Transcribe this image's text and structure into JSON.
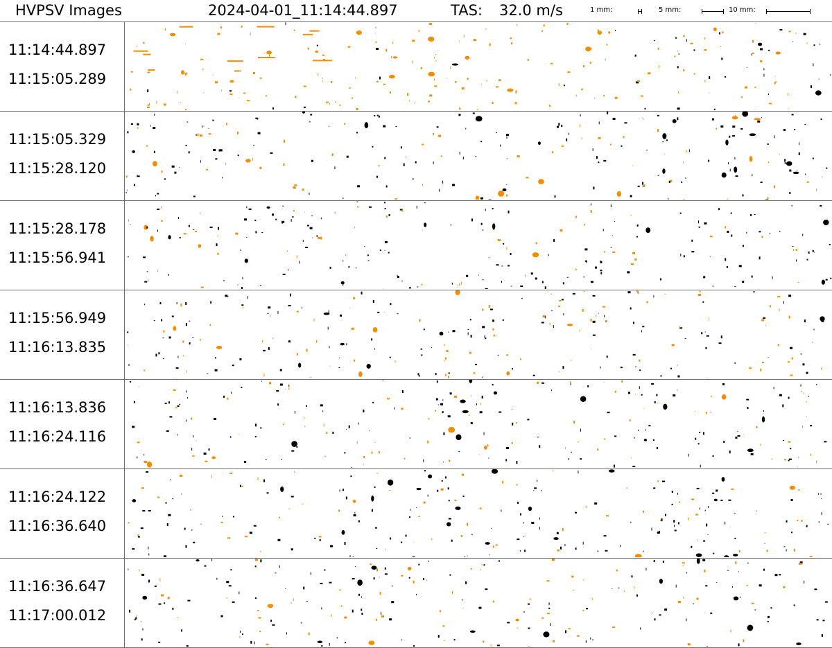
{
  "header": {
    "title": "HVPSV Images",
    "timestamp": "2024-04-01_11:14:44.897",
    "tas_label": "TAS:",
    "tas_value": "32.0 m/s",
    "scale": [
      {
        "label": "1 mm:"
      },
      {
        "label": "5 mm:"
      },
      {
        "label": "10 mm:"
      }
    ]
  },
  "colors": {
    "ice_particle": "#000000",
    "liquid_particle": "#f28c00",
    "divider": "#6e6e6e"
  },
  "strips": [
    {
      "start": "11:14:44.897",
      "end": "11:15:05.289"
    },
    {
      "start": "11:15:05.329",
      "end": "11:15:28.120"
    },
    {
      "start": "11:15:28.178",
      "end": "11:15:56.941"
    },
    {
      "start": "11:15:56.949",
      "end": "11:16:13.835"
    },
    {
      "start": "11:16:13.836",
      "end": "11:16:24.116"
    },
    {
      "start": "11:16:24.122",
      "end": "11:16:36.640"
    },
    {
      "start": "11:16:36.647",
      "end": "11:17:00.012"
    }
  ]
}
